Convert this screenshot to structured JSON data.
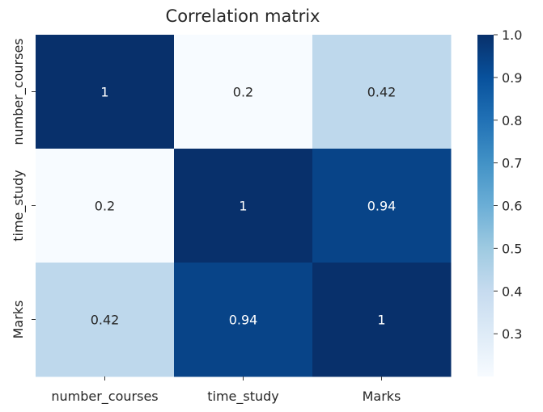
{
  "chart_data": {
    "type": "heatmap",
    "title": "Correlation matrix",
    "xlabel": "",
    "ylabel": "",
    "x_categories": [
      "number_courses",
      "time_study",
      "Marks"
    ],
    "y_categories": [
      "number_courses",
      "time_study",
      "Marks"
    ],
    "values": [
      [
        1,
        0.2,
        0.42
      ],
      [
        0.2,
        1,
        0.94
      ],
      [
        0.42,
        0.94,
        1
      ]
    ],
    "value_labels": [
      [
        "1",
        "0.2",
        "0.42"
      ],
      [
        "0.2",
        "1",
        "0.94"
      ],
      [
        "0.42",
        "0.94",
        "1"
      ]
    ],
    "colormap": "Blues",
    "colorbar": {
      "range": [
        0.2,
        1.0
      ],
      "ticks": [
        0.3,
        0.4,
        0.5,
        0.6,
        0.7,
        0.8,
        0.9,
        1.0
      ],
      "tick_labels": [
        "0.3",
        "0.4",
        "0.5",
        "0.6",
        "0.7",
        "0.8",
        "0.9",
        "1.0"
      ]
    },
    "annotations": true,
    "grid": false
  }
}
